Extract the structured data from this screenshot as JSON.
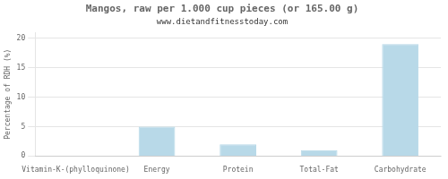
{
  "chart_data": {
    "type": "bar",
    "title": "Mangos, raw per 1.000 cup pieces (or 165.00 g)",
    "subtitle": "www.dietandfitnesstoday.com",
    "categories": [
      "Vitamin-K-(phylloquinone)",
      "Energy",
      "Protein",
      "Total-Fat",
      "Carbohydrate"
    ],
    "values": [
      0,
      5,
      2,
      1,
      19
    ],
    "color": "#b8d9e8",
    "ylabel": "Percentage of RDH (%)",
    "ylim": [
      0,
      21
    ],
    "yticks": [
      0,
      5,
      10,
      15,
      20
    ],
    "grid": true
  }
}
